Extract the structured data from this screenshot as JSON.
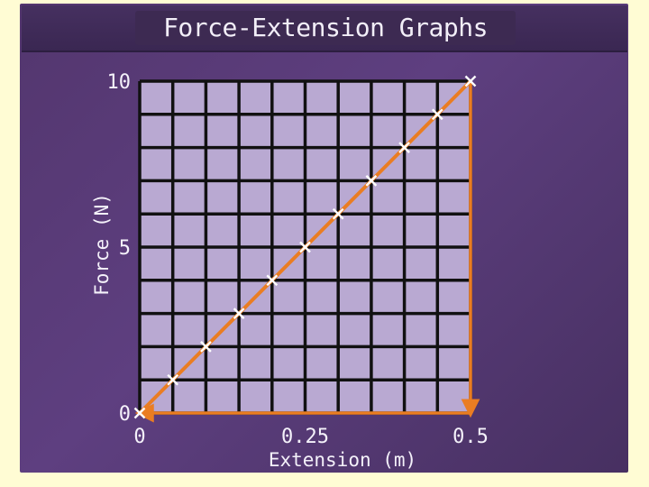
{
  "slide": {
    "title": "Force-Extension Graphs"
  },
  "colors": {
    "slide_background": "#5a3d7a",
    "page_background": "#fffcd4",
    "grid_fill": "#b9a9d2",
    "grid_lines": "#111111",
    "line_color": "#ea7d22",
    "marker_color": "#ffffff",
    "text_color": "#f4f1fa"
  },
  "chart_data": {
    "type": "line",
    "title": "Force-Extension Graphs",
    "xlabel": "Extension (m)",
    "ylabel": "Force (N)",
    "xlim": [
      0,
      0.5
    ],
    "ylim": [
      0,
      10
    ],
    "grid": true,
    "x_ticks": [
      {
        "value": 0,
        "label": "0"
      },
      {
        "value": 0.25,
        "label": "0.25"
      },
      {
        "value": 0.5,
        "label": "0.5"
      }
    ],
    "y_ticks": [
      {
        "value": 0,
        "label": "0"
      },
      {
        "value": 5,
        "label": "5"
      },
      {
        "value": 10,
        "label": "10"
      }
    ],
    "series": [
      {
        "marker": "x",
        "x": [
          0,
          0.05,
          0.1,
          0.15,
          0.2,
          0.25,
          0.3,
          0.35,
          0.4,
          0.45,
          0.5
        ],
        "y": [
          0,
          1,
          2,
          3,
          4,
          5,
          6,
          7,
          8,
          9,
          10
        ]
      }
    ],
    "annotations": [
      {
        "type": "arrow",
        "from": [
          0.5,
          10
        ],
        "to": [
          0.5,
          0
        ],
        "description": "vertical arrow down from top point to x-axis"
      },
      {
        "type": "arrow",
        "from": [
          0.5,
          0
        ],
        "to": [
          0,
          0
        ],
        "description": "horizontal arrow along x-axis back to origin"
      }
    ]
  }
}
